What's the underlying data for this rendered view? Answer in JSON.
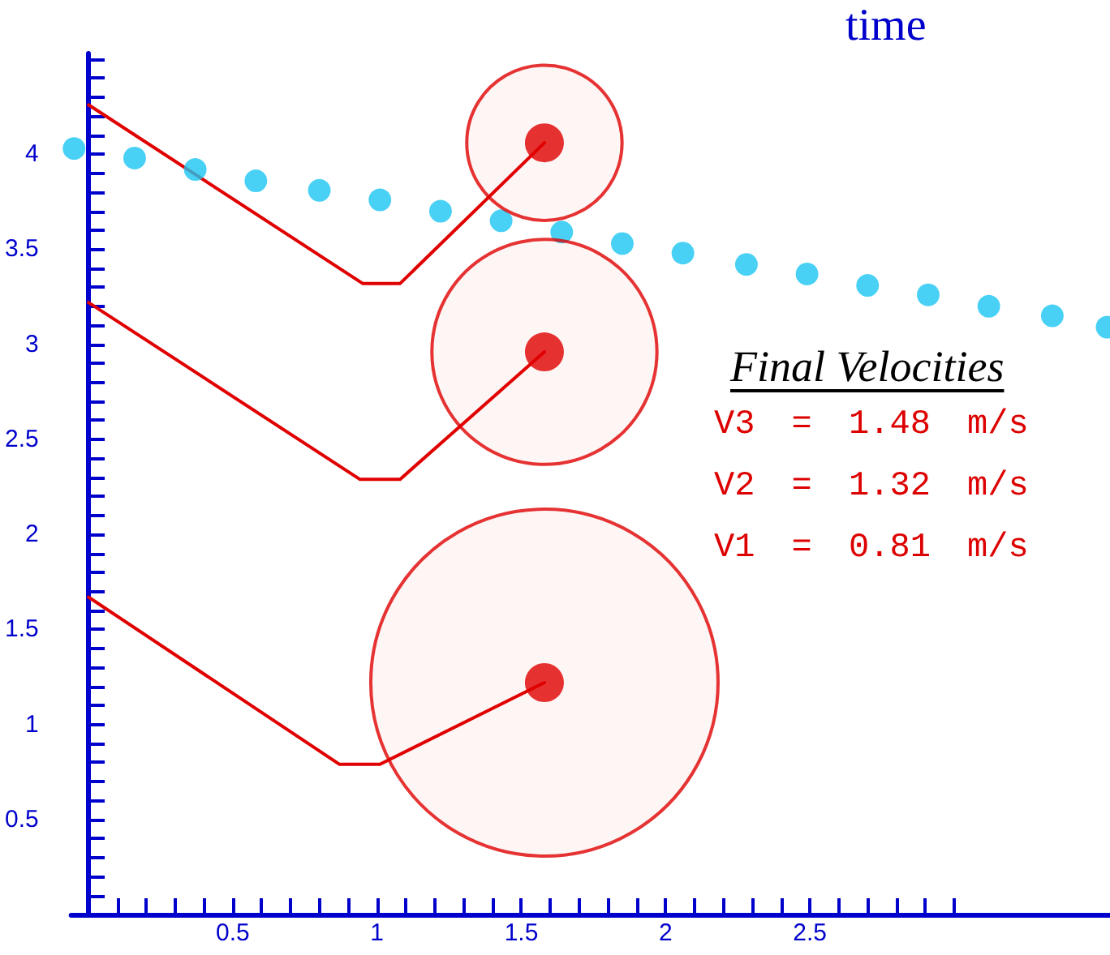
{
  "chart_data": {
    "type": "line",
    "xlabel": "time",
    "xlim": [
      -0.06,
      3.54
    ],
    "ylim": [
      0,
      4.53
    ],
    "xticks": [
      {
        "value": 0.1,
        "label": null
      },
      {
        "value": 0.2,
        "label": null
      },
      {
        "value": 0.3,
        "label": null
      },
      {
        "value": 0.4,
        "label": null
      },
      0.5,
      {
        "value": 0.6,
        "label": null
      },
      {
        "value": 0.7,
        "label": null
      },
      {
        "value": 0.8,
        "label": null
      },
      {
        "value": 0.9,
        "label": null
      },
      1,
      {
        "value": 1.1,
        "label": null
      },
      {
        "value": 1.2,
        "label": null
      },
      {
        "value": 1.3,
        "label": null
      },
      {
        "value": 1.4,
        "label": null
      },
      1.5,
      {
        "value": 1.6,
        "label": null
      },
      {
        "value": 1.7,
        "label": null
      },
      {
        "value": 1.8,
        "label": null
      },
      {
        "value": 1.9,
        "label": null
      },
      2,
      {
        "value": 2.1,
        "label": null
      },
      {
        "value": 2.2,
        "label": null
      },
      {
        "value": 2.3,
        "label": null
      },
      {
        "value": 2.4,
        "label": null
      },
      2.5,
      {
        "value": 2.6,
        "label": null
      },
      {
        "value": 2.7,
        "label": null
      },
      {
        "value": 2.8,
        "label": null
      },
      {
        "value": 2.9,
        "label": null
      },
      {
        "value": 3,
        "label": null
      }
    ],
    "yticks": [
      {
        "value": 0.1,
        "label": null
      },
      {
        "value": 0.2,
        "label": null
      },
      {
        "value": 0.3,
        "label": null
      },
      {
        "value": 0.4,
        "label": null
      },
      0.5,
      {
        "value": 0.6,
        "label": null
      },
      {
        "value": 0.7,
        "label": null
      },
      {
        "value": 0.8,
        "label": null
      },
      {
        "value": 0.9,
        "label": null
      },
      1,
      {
        "value": 1.1,
        "label": null
      },
      {
        "value": 1.2,
        "label": null
      },
      {
        "value": 1.3,
        "label": null
      },
      {
        "value": 1.4,
        "label": null
      },
      1.5,
      {
        "value": 1.6,
        "label": null
      },
      {
        "value": 1.7,
        "label": null
      },
      {
        "value": 1.8,
        "label": null
      },
      {
        "value": 1.9,
        "label": null
      },
      2,
      {
        "value": 2.1,
        "label": null
      },
      {
        "value": 2.2,
        "label": null
      },
      {
        "value": 2.3,
        "label": null
      },
      {
        "value": 2.4,
        "label": null
      },
      2.5,
      {
        "value": 2.6,
        "label": null
      },
      {
        "value": 2.7,
        "label": null
      },
      {
        "value": 2.8,
        "label": null
      },
      {
        "value": 2.9,
        "label": null
      },
      3,
      {
        "value": 3.1,
        "label": null
      },
      {
        "value": 3.2,
        "label": null
      },
      {
        "value": 3.3,
        "label": null
      },
      {
        "value": 3.4,
        "label": null
      },
      3.5,
      {
        "value": 3.6,
        "label": null
      },
      {
        "value": 3.7,
        "label": null
      },
      {
        "value": 3.8,
        "label": null
      },
      {
        "value": 3.9,
        "label": null
      },
      4,
      {
        "value": 4.1,
        "label": null
      },
      {
        "value": 4.2,
        "label": null
      },
      {
        "value": 4.3,
        "label": null
      },
      {
        "value": 4.4,
        "label": null
      },
      {
        "value": 4.5,
        "label": null
      }
    ],
    "annotations": [
      "Final Velocities",
      "V3 = 1.48 m/s",
      "V2 = 1.32 m/s",
      "V1 = 0.81 m/s"
    ],
    "series": [
      {
        "type": "line",
        "color": "#e00000",
        "line_style": "solid",
        "x": [
          0,
          0.95,
          1.08,
          1.58
        ],
        "values": [
          4.26,
          3.32,
          3.32,
          4.06
        ]
      },
      {
        "type": "line",
        "color": "#e00000",
        "line_style": "solid",
        "x": [
          0,
          0.94,
          1.08,
          1.58
        ],
        "values": [
          3.22,
          2.29,
          2.29,
          2.96
        ]
      },
      {
        "type": "line",
        "color": "#e00000",
        "line_style": "solid",
        "x": [
          0,
          0.87,
          1.01,
          1.58
        ],
        "values": [
          1.67,
          0.79,
          0.79,
          1.22
        ]
      },
      {
        "type": "bubble",
        "color": "#e00000",
        "x": [
          1.58,
          1.58,
          1.58
        ],
        "values": [
          4.06,
          2.96,
          1.22
        ],
        "sizes": [
          0.2,
          0.42,
          1
        ]
      },
      {
        "type": "scatter",
        "color": "#e00000",
        "marker": "circle",
        "x": [
          1.58,
          1.58,
          1.58
        ],
        "values": [
          4.06,
          2.96,
          1.22
        ]
      },
      {
        "type": "scatter",
        "color": "#1cc6f2",
        "marker": "circle",
        "x": [
          -0.05,
          0.16,
          0.37,
          0.58,
          0.8,
          1.01,
          1.22,
          1.43,
          1.64,
          1.85,
          2.06,
          2.28,
          2.49,
          2.7,
          2.91,
          3.12,
          3.34,
          3.53
        ],
        "values": [
          4.03,
          3.98,
          3.92,
          3.86,
          3.81,
          3.76,
          3.7,
          3.65,
          3.59,
          3.53,
          3.48,
          3.42,
          3.37,
          3.31,
          3.26,
          3.2,
          3.15,
          3.09
        ]
      }
    ]
  }
}
